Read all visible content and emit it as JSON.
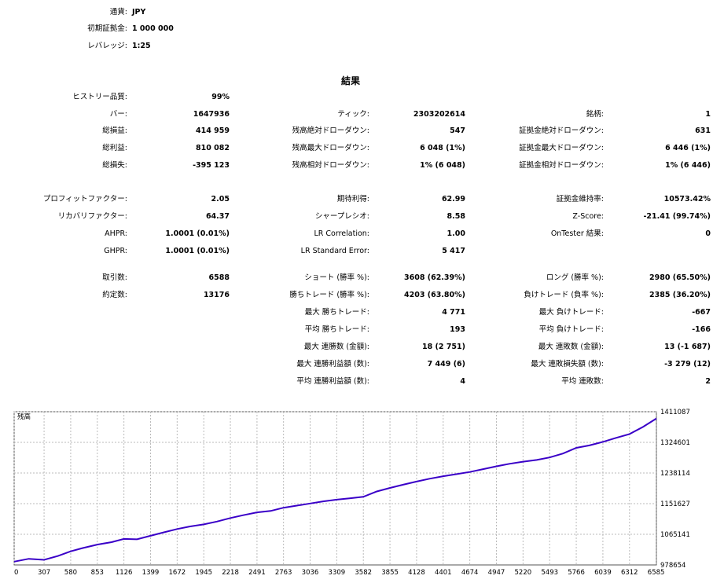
{
  "header": {
    "currency_label": "通貨:",
    "currency_value": "JPY",
    "deposit_label": "初期証拠金:",
    "deposit_value": "1 000 000",
    "leverage_label": "レバレッジ:",
    "leverage_value": "1:25"
  },
  "results_title": "結果",
  "rows": [
    {
      "c1": [
        "ヒストリー品質:",
        "99%"
      ]
    },
    {
      "c1": [
        "バー:",
        "1647936"
      ],
      "c2": [
        "ティック:",
        "2303202614"
      ],
      "c3": [
        "銘柄:",
        "1"
      ]
    },
    {
      "c1": [
        "総損益:",
        "414 959"
      ],
      "c2": [
        "残高絶対ドローダウン:",
        "547"
      ],
      "c3": [
        "証拠金絶対ドローダウン:",
        "631"
      ]
    },
    {
      "c1": [
        "総利益:",
        "810 082"
      ],
      "c2": [
        "残高最大ドローダウン:",
        "6 048 (1%)"
      ],
      "c3": [
        "証拠金最大ドローダウン:",
        "6 446 (1%)"
      ]
    },
    {
      "c1": [
        "総損失:",
        "-395 123"
      ],
      "c2": [
        "残高相対ドローダウン:",
        "1% (6 048)"
      ],
      "c3": [
        "証拠金相対ドローダウン:",
        "1% (6 446)"
      ]
    },
    {
      "c1": [
        "プロフィットファクター:",
        "2.05"
      ],
      "c2": [
        "期待利得:",
        "62.99"
      ],
      "c3": [
        "証拠金維持率:",
        "10573.42%"
      ]
    },
    {
      "c1": [
        "リカバリファクター:",
        "64.37"
      ],
      "c2": [
        "シャープレシオ:",
        "8.58"
      ],
      "c3": [
        "Z-Score:",
        "-21.41 (99.74%)"
      ]
    },
    {
      "c1": [
        "AHPR:",
        "1.0001 (0.01%)"
      ],
      "c2": [
        "LR Correlation:",
        "1.00"
      ],
      "c3": [
        "OnTester 結果:",
        "0"
      ]
    },
    {
      "c1": [
        "GHPR:",
        "1.0001 (0.01%)"
      ],
      "c2": [
        "LR Standard Error:",
        "5 417"
      ]
    },
    {
      "c1": [
        "取引数:",
        "6588"
      ],
      "c2": [
        "ショート (勝率 %):",
        "3608 (62.39%)"
      ],
      "c3": [
        "ロング (勝率 %):",
        "2980 (65.50%)"
      ]
    },
    {
      "c1": [
        "約定数:",
        "13176"
      ],
      "c2": [
        "勝ちトレード (勝率 %):",
        "4203 (63.80%)"
      ],
      "c3": [
        "負けトレード (負率 %):",
        "2385 (36.20%)"
      ]
    },
    {
      "c2": [
        "最大 勝ちトレード:",
        "4 771"
      ],
      "c3": [
        "最大 負けトレード:",
        "-667"
      ]
    },
    {
      "c2": [
        "平均 勝ちトレード:",
        "193"
      ],
      "c3": [
        "平均 負けトレード:",
        "-166"
      ]
    },
    {
      "c2": [
        "最大 連勝数 (金額):",
        "18 (2 751)"
      ],
      "c3": [
        "最大 連敗数 (金額):",
        "13 (-1 687)"
      ]
    },
    {
      "c2": [
        "最大 連勝利益額 (数):",
        "7 449 (6)"
      ],
      "c3": [
        "最大 連敗損失額 (数):",
        "-3 279 (12)"
      ]
    },
    {
      "c2": [
        "平均 連勝利益額 (数):",
        "4"
      ],
      "c3": [
        "平均 連敗数:",
        "2"
      ]
    }
  ],
  "chart_data": {
    "type": "line",
    "title": "残高",
    "x_ticks": [
      "0",
      "307",
      "580",
      "853",
      "1126",
      "1399",
      "1672",
      "1945",
      "2218",
      "2491",
      "2763",
      "3036",
      "3309",
      "3582",
      "3855",
      "4128",
      "4401",
      "4674",
      "4947",
      "5220",
      "5493",
      "5766",
      "6039",
      "6312",
      "6585"
    ],
    "y_ticks": [
      "1411087",
      "1324601",
      "1238114",
      "1151627",
      "1065141",
      "978654"
    ],
    "ylim": [
      978654,
      1411087
    ],
    "xlim": [
      0,
      6588
    ],
    "series": [
      {
        "color": "#3a00c8",
        "x": [
          0,
          150,
          307,
          450,
          580,
          700,
          853,
          1000,
          1126,
          1260,
          1399,
          1540,
          1672,
          1800,
          1945,
          2080,
          2218,
          2350,
          2491,
          2630,
          2763,
          2900,
          3036,
          3170,
          3309,
          3450,
          3582,
          3720,
          3855,
          3990,
          4128,
          4260,
          4401,
          4540,
          4674,
          4810,
          4947,
          5080,
          5220,
          5360,
          5493,
          5630,
          5766,
          5900,
          6039,
          6170,
          6312,
          6450,
          6588
        ],
        "y": [
          988000,
          996000,
          993000,
          1004000,
          1017000,
          1026000,
          1036000,
          1043000,
          1052000,
          1051000,
          1061000,
          1071000,
          1080000,
          1087000,
          1093000,
          1101000,
          1111000,
          1119000,
          1127000,
          1131000,
          1140000,
          1146000,
          1152000,
          1158000,
          1163000,
          1167000,
          1171000,
          1186000,
          1196000,
          1205000,
          1214000,
          1222000,
          1229000,
          1235000,
          1241000,
          1249000,
          1257000,
          1264000,
          1270000,
          1275000,
          1282000,
          1293000,
          1309000,
          1316000,
          1326000,
          1337000,
          1348000,
          1368000,
          1392000
        ]
      }
    ]
  }
}
